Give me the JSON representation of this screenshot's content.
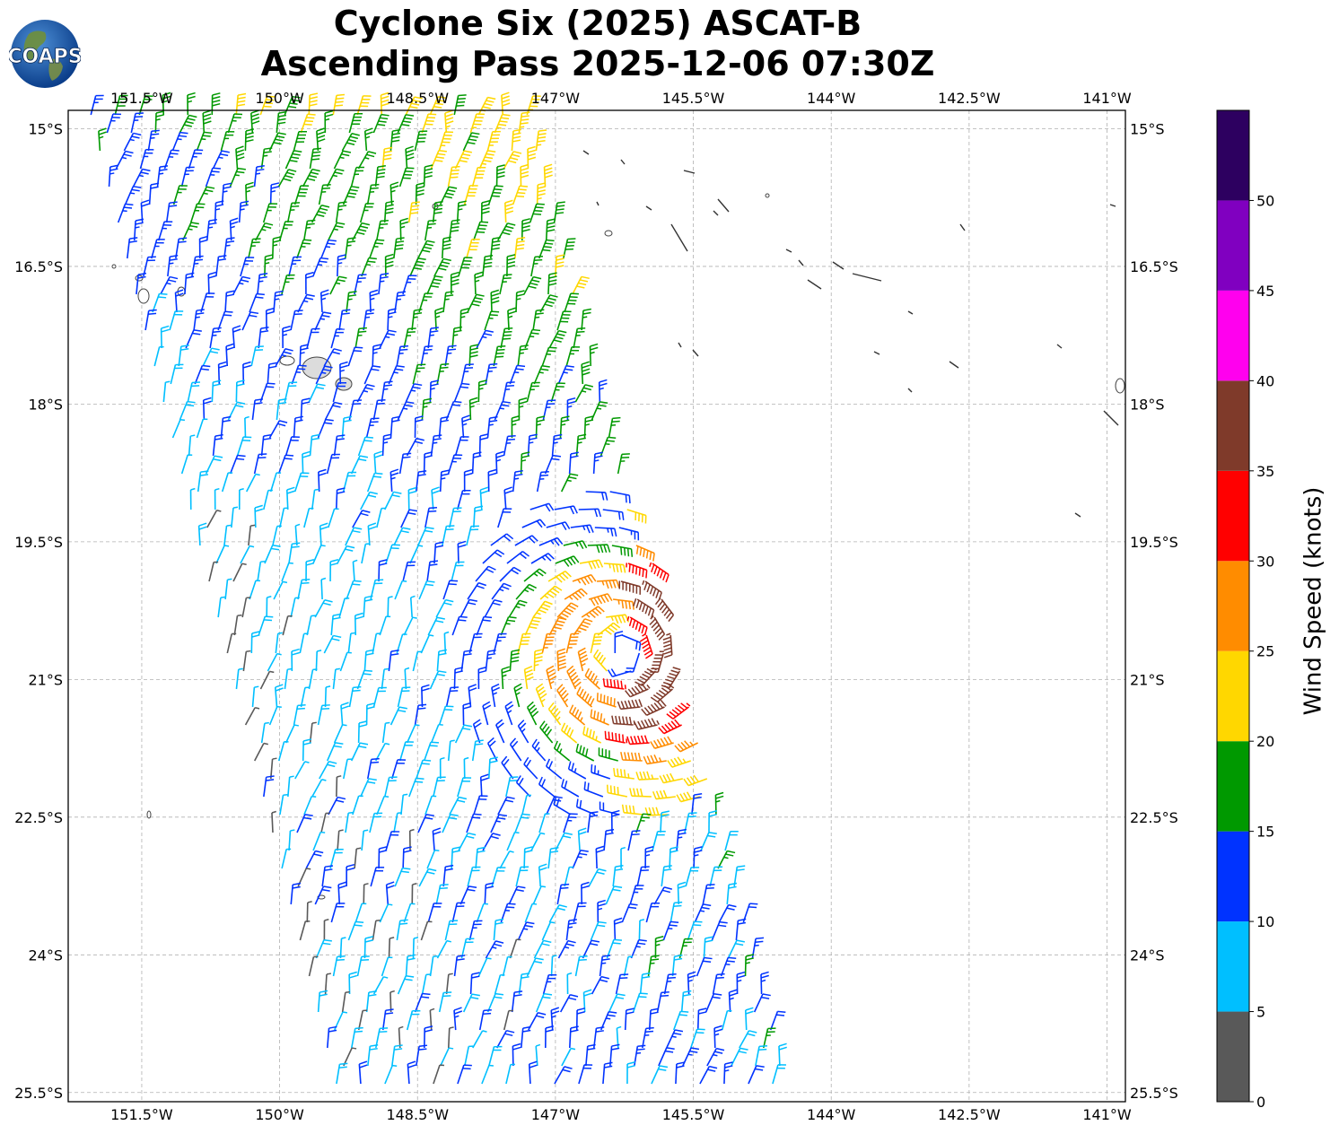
{
  "title": {
    "line1": "Cyclone Six (2025) ASCAT-B",
    "line2": "Ascending Pass 2025-12-06 07:30Z"
  },
  "logo": {
    "text": "COAPS"
  },
  "axes": {
    "lon_labels": [
      "151.5°W",
      "150°W",
      "148.5°W",
      "147°W",
      "145.5°W",
      "144°W",
      "142.5°W",
      "141°W"
    ],
    "lat_labels": [
      "15°S",
      "16.5°S",
      "18°S",
      "19.5°S",
      "21°S",
      "22.5°S",
      "24°S",
      "25.5°S"
    ]
  },
  "chart_data": {
    "type": "wind-barb-map",
    "extent": {
      "lon": [
        -152.3,
        -140.8
      ],
      "lat": [
        -25.6,
        -14.8
      ]
    },
    "grid": true,
    "colorbar": {
      "label": "Wind Speed (knots)",
      "ticks": [
        "0",
        "5",
        "10",
        "15",
        "20",
        "25",
        "30",
        "35",
        "40",
        "45",
        "50"
      ],
      "colors": [
        "#595959",
        "#00bfff",
        "#0033ff",
        "#009900",
        "#ffd700",
        "#ff8c00",
        "#ff0000",
        "#7f3a2a",
        "#ff00ee",
        "#8000c0",
        "#2d0060"
      ]
    },
    "cyclone_center": {
      "lon": -146.3,
      "lat": -20.7
    }
  }
}
